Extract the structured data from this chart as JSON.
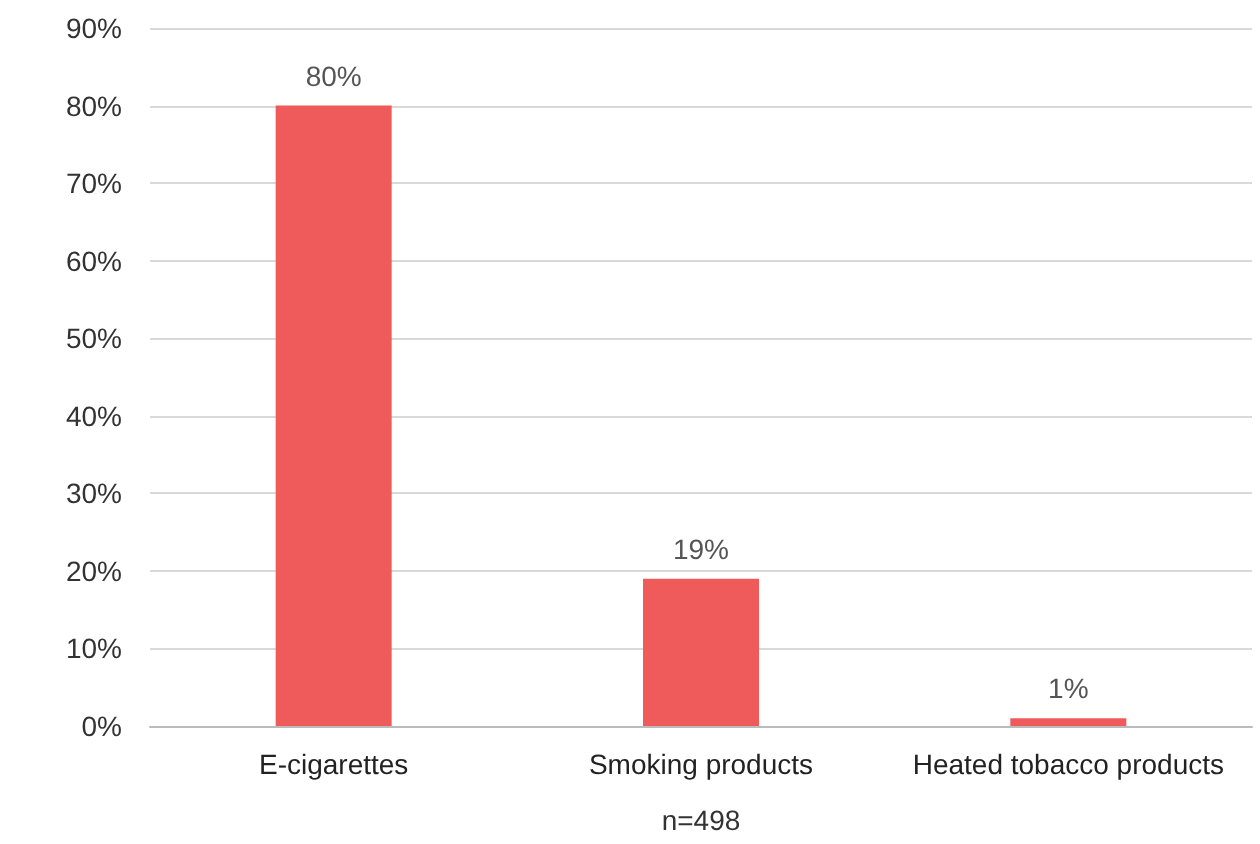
{
  "chart_data": {
    "type": "bar",
    "categories": [
      "E-cigarettes",
      "Smoking products",
      "Heated tobacco products"
    ],
    "values": [
      80,
      19,
      1
    ],
    "color": "#ef5b5b",
    "value_labels": [
      "80%",
      "19%",
      "1%"
    ],
    "xlabel": "n=498",
    "ylim": [
      0,
      90
    ],
    "yticks": [
      {
        "value": 0,
        "label": "0%"
      },
      {
        "value": 10,
        "label": "10%"
      },
      {
        "value": 20,
        "label": "20%"
      },
      {
        "value": 30,
        "label": "30%"
      },
      {
        "value": 40,
        "label": "40%"
      },
      {
        "value": 50,
        "label": "50%"
      },
      {
        "value": 60,
        "label": "60%"
      },
      {
        "value": 70,
        "label": "70%"
      },
      {
        "value": 80,
        "label": "80%"
      },
      {
        "value": 90,
        "label": "90%"
      }
    ],
    "grid": "y"
  }
}
